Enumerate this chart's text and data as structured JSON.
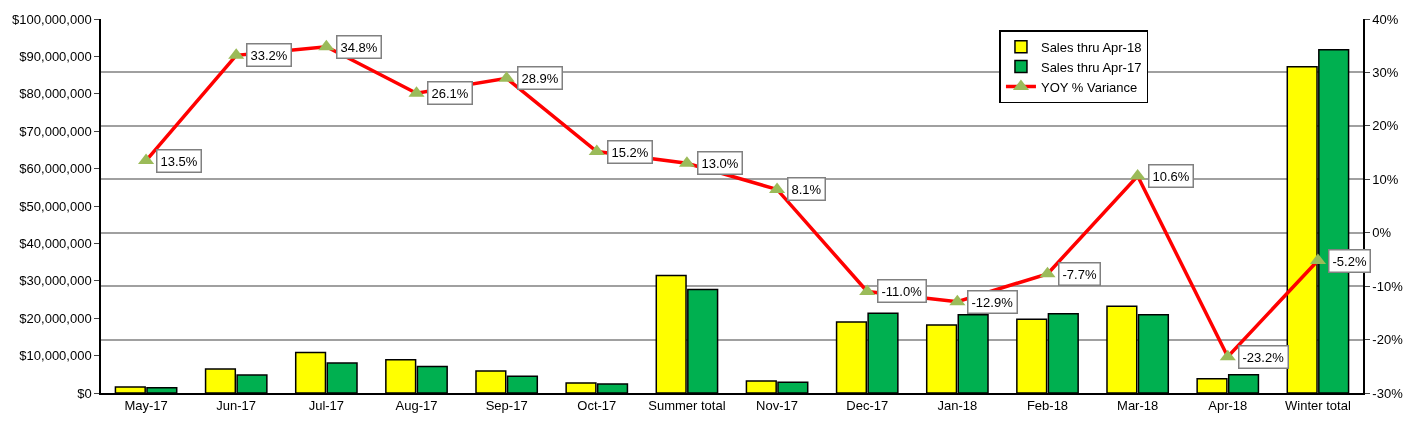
{
  "chart_data": {
    "type": "bar",
    "categories": [
      "May-17",
      "Jun-17",
      "Jul-17",
      "Aug-17",
      "Sep-17",
      "Oct-17",
      "Summer total",
      "Nov-17",
      "Dec-17",
      "Jan-18",
      "Feb-18",
      "Mar-18",
      "Apr-18",
      "Winter total"
    ],
    "series": [
      {
        "name": "Sales thru Apr-18",
        "color": "#ffff00",
        "values": [
          1600000,
          6400000,
          10800000,
          8900000,
          5900000,
          2700000,
          31400000,
          3200000,
          19000000,
          18200000,
          19700000,
          23200000,
          3800000,
          87200000
        ]
      },
      {
        "name": "Sales thru Apr-17",
        "color": "#00b050",
        "values": [
          1400000,
          4800000,
          8000000,
          7100000,
          4500000,
          2400000,
          27700000,
          2900000,
          21300000,
          20900000,
          21200000,
          20900000,
          4900000,
          91800000
        ]
      },
      {
        "name": "YOY % Variance",
        "type": "line",
        "axis": "y2",
        "color": "#ff0000",
        "marker": "triangle",
        "values": [
          13.5,
          33.2,
          34.8,
          26.1,
          28.9,
          15.2,
          13.0,
          8.1,
          -11.0,
          -12.9,
          -7.7,
          10.6,
          -23.2,
          -5.2
        ],
        "value_labels": [
          "13.5%",
          "33.2%",
          "34.8%",
          "26.1%",
          "28.9%",
          "15.2%",
          "13.0%",
          "8.1%",
          "-11.0%",
          "-12.9%",
          "-7.7%",
          "10.6%",
          "-23.2%",
          "-5.2%"
        ]
      }
    ],
    "ylim": [
      0,
      100000000
    ],
    "yticks": [
      {
        "value": 0,
        "label": "$0"
      },
      {
        "value": 10000000,
        "label": "$10,000,000"
      },
      {
        "value": 20000000,
        "label": "$20,000,000"
      },
      {
        "value": 30000000,
        "label": "$30,000,000"
      },
      {
        "value": 40000000,
        "label": "$40,000,000"
      },
      {
        "value": 50000000,
        "label": "$50,000,000"
      },
      {
        "value": 60000000,
        "label": "$60,000,000"
      },
      {
        "value": 70000000,
        "label": "$70,000,000"
      },
      {
        "value": 80000000,
        "label": "$80,000,000"
      },
      {
        "value": 90000000,
        "label": "$90,000,000"
      },
      {
        "value": 100000000,
        "label": "$100,000,000"
      }
    ],
    "y2lim": [
      -30,
      40
    ],
    "y2ticks": [
      {
        "value": -30,
        "label": "-30%"
      },
      {
        "value": -20,
        "label": "-20%"
      },
      {
        "value": -10,
        "label": "-10%"
      },
      {
        "value": 0,
        "label": "0%"
      },
      {
        "value": 10,
        "label": "10%"
      },
      {
        "value": 20,
        "label": "20%"
      },
      {
        "value": 30,
        "label": "30%"
      },
      {
        "value": 40,
        "label": "40%"
      }
    ],
    "grid": true,
    "legend": "top right"
  }
}
